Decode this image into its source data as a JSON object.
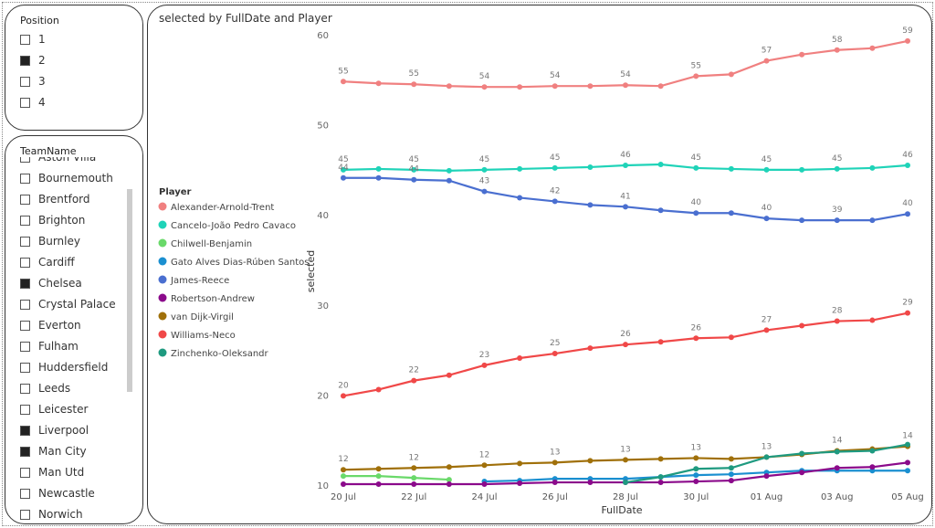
{
  "position_slicer": {
    "title": "Position",
    "items": [
      {
        "label": "1",
        "checked": false
      },
      {
        "label": "2",
        "checked": true
      },
      {
        "label": "3",
        "checked": false
      },
      {
        "label": "4",
        "checked": false
      }
    ]
  },
  "team_slicer": {
    "title": "TeamName",
    "items": [
      {
        "label": "Aston Villa",
        "checked": false
      },
      {
        "label": "Bournemouth",
        "checked": false
      },
      {
        "label": "Brentford",
        "checked": false
      },
      {
        "label": "Brighton",
        "checked": false
      },
      {
        "label": "Burnley",
        "checked": false
      },
      {
        "label": "Cardiff",
        "checked": false
      },
      {
        "label": "Chelsea",
        "checked": true
      },
      {
        "label": "Crystal Palace",
        "checked": false
      },
      {
        "label": "Everton",
        "checked": false
      },
      {
        "label": "Fulham",
        "checked": false
      },
      {
        "label": "Huddersfield",
        "checked": false
      },
      {
        "label": "Leeds",
        "checked": false
      },
      {
        "label": "Leicester",
        "checked": false
      },
      {
        "label": "Liverpool",
        "checked": true
      },
      {
        "label": "Man City",
        "checked": true
      },
      {
        "label": "Man Utd",
        "checked": false
      },
      {
        "label": "Newcastle",
        "checked": false
      },
      {
        "label": "Norwich",
        "checked": false
      }
    ]
  },
  "chart_data": {
    "type": "line",
    "title": "selected by FullDate and Player",
    "x_label": "FullDate",
    "y_label": "selected",
    "legend_title": "Player",
    "categories": [
      "20 Jul",
      null,
      "22 Jul",
      null,
      "24 Jul",
      null,
      "26 Jul",
      null,
      "28 Jul",
      null,
      "30 Jul",
      null,
      "01 Aug",
      null,
      "03 Aug",
      null,
      "05 Aug"
    ],
    "ylim": [
      10,
      60
    ],
    "yticks": [
      10,
      20,
      30,
      40,
      50,
      60
    ],
    "series": [
      {
        "name": "Alexander-Arnold-Trent",
        "color": "#f08080",
        "values": [
          54.8,
          54.6,
          54.5,
          54.3,
          54.2,
          54.2,
          54.3,
          54.3,
          54.4,
          54.3,
          55.4,
          55.6,
          57.1,
          57.8,
          58.3,
          58.5,
          59.3
        ],
        "value_labels": [
          "55",
          null,
          "55",
          null,
          "54",
          null,
          "54",
          null,
          "54",
          null,
          "55",
          null,
          "57",
          null,
          "58",
          null,
          "59"
        ]
      },
      {
        "name": "Cancelo-João Pedro Cavaco",
        "color": "#1fd3b8",
        "values": [
          45.0,
          45.1,
          45.0,
          44.9,
          45.0,
          45.1,
          45.2,
          45.3,
          45.5,
          45.6,
          45.2,
          45.1,
          45.0,
          45.0,
          45.1,
          45.2,
          45.5
        ],
        "value_labels": [
          "45",
          null,
          "45",
          null,
          "45",
          null,
          "45",
          null,
          "46",
          null,
          "45",
          null,
          "45",
          null,
          "45",
          null,
          "46"
        ]
      },
      {
        "name": "Chilwell-Benjamin",
        "color": "#6ad96a",
        "values": [
          11.0,
          11.0,
          10.8,
          10.6,
          null,
          null,
          null,
          null,
          null,
          null,
          null,
          null,
          null,
          null,
          null,
          null,
          null
        ]
      },
      {
        "name": "Gato Alves Dias-Rúben Santos",
        "color": "#1a8fd0",
        "values": [
          null,
          null,
          null,
          null,
          10.4,
          10.5,
          10.7,
          10.7,
          10.7,
          10.9,
          11.1,
          11.2,
          11.4,
          11.6,
          11.6,
          11.6,
          11.6
        ]
      },
      {
        "name": "James-Reece",
        "color": "#4a6fd0",
        "values": [
          44.1,
          44.1,
          43.9,
          43.8,
          42.6,
          41.9,
          41.5,
          41.1,
          40.9,
          40.5,
          40.2,
          40.2,
          39.6,
          39.4,
          39.4,
          39.4,
          40.1
        ],
        "value_labels": [
          "44",
          null,
          "44",
          null,
          "43",
          null,
          "42",
          null,
          "41",
          null,
          "40",
          null,
          "40",
          null,
          "39",
          null,
          "40"
        ]
      },
      {
        "name": "Robertson-Andrew",
        "color": "#8b0a8b",
        "values": [
          10.1,
          10.1,
          10.1,
          10.1,
          10.1,
          10.2,
          10.3,
          10.3,
          10.3,
          10.3,
          10.4,
          10.5,
          11.0,
          11.4,
          11.9,
          12.0,
          12.5
        ]
      },
      {
        "name": "van Dijk-Virgil",
        "color": "#a0700a",
        "values": [
          11.7,
          11.8,
          11.9,
          12.0,
          12.2,
          12.4,
          12.5,
          12.7,
          12.8,
          12.9,
          13.0,
          12.9,
          13.1,
          13.4,
          13.8,
          14.0,
          14.3
        ],
        "value_labels": [
          "12",
          null,
          "12",
          null,
          "12",
          null,
          "13",
          null,
          "13",
          null,
          "13",
          null,
          "13",
          null,
          "14",
          null,
          "14"
        ]
      },
      {
        "name": "Williams-Neco",
        "color": "#f04848",
        "values": [
          19.9,
          20.6,
          21.6,
          22.2,
          23.3,
          24.1,
          24.6,
          25.2,
          25.6,
          25.9,
          26.3,
          26.4,
          27.2,
          27.7,
          28.2,
          28.3,
          29.1
        ],
        "value_labels": [
          "20",
          null,
          "22",
          null,
          "23",
          null,
          "25",
          null,
          "26",
          null,
          "26",
          null,
          "27",
          null,
          "28",
          null,
          "29"
        ]
      },
      {
        "name": "Zinchenko-Oleksandr",
        "color": "#1f9a80",
        "values": [
          null,
          null,
          null,
          null,
          null,
          null,
          null,
          null,
          10.3,
          10.9,
          11.8,
          11.9,
          13.1,
          13.5,
          13.7,
          13.8,
          14.5
        ]
      }
    ]
  }
}
